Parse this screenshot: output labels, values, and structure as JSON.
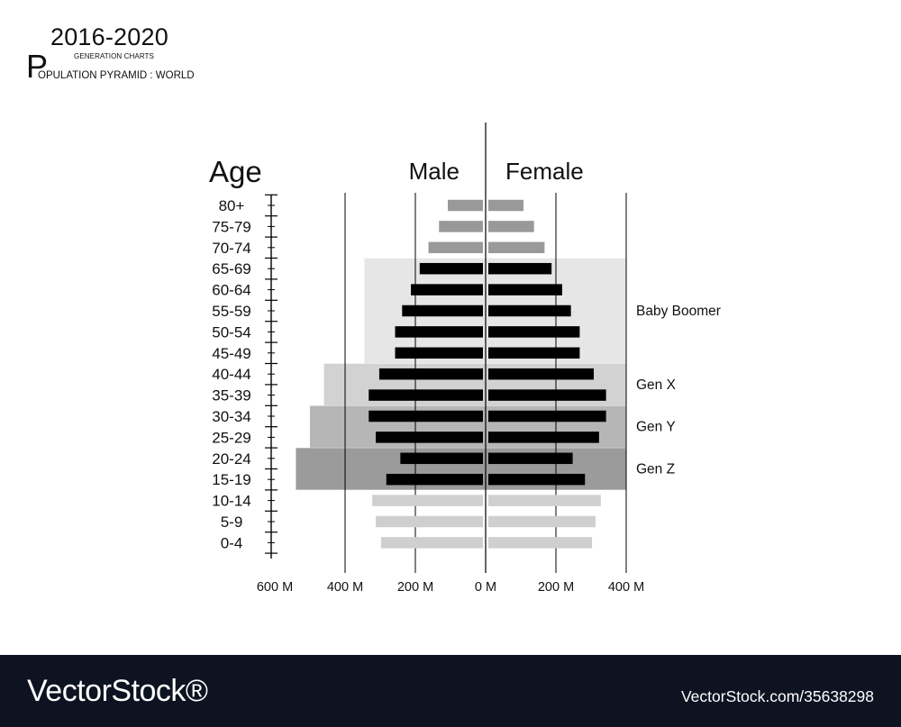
{
  "header": {
    "years": "2016-2020",
    "subtitle": "GENERATION CHARTS",
    "title_initial": "P",
    "title_rest": "OPULATION PYRAMID : WORLD"
  },
  "footer": {
    "logo": "VectorStock®",
    "url": "VectorStock.com/35638298"
  },
  "chart_data": {
    "type": "bar",
    "orientation": "horizontal",
    "ylabel": "Age",
    "categories": [
      "80+",
      "75-79",
      "70-74",
      "65-69",
      "60-64",
      "55-59",
      "50-54",
      "45-49",
      "40-44",
      "35-39",
      "30-34",
      "25-29",
      "20-24",
      "15-19",
      "10-14",
      "5-9",
      "0-4"
    ],
    "series": [
      {
        "name": "Male",
        "values": [
          100,
          125,
          155,
          180,
          205,
          230,
          250,
          250,
          295,
          325,
          325,
          305,
          235,
          275,
          315,
          305,
          290
        ]
      },
      {
        "name": "Female",
        "values": [
          100,
          130,
          160,
          180,
          210,
          235,
          260,
          260,
          300,
          335,
          335,
          315,
          240,
          275,
          320,
          305,
          295
        ]
      }
    ],
    "series_colors": {
      "older": "#999999",
      "generation": "#000000",
      "younger": "#cfcfcf"
    },
    "x_ticks_left": [
      "600 M",
      "400 M",
      "200 M",
      "0 M"
    ],
    "x_ticks_right": [
      "200 M",
      "400 M"
    ],
    "x_tick_values_left": [
      600,
      400,
      200,
      0
    ],
    "x_tick_values_right": [
      200,
      400
    ],
    "xlim": [
      -600,
      400
    ],
    "generations": [
      {
        "name": "Baby Boomer",
        "from": "65-69",
        "to": "45-49",
        "left_extent": 345,
        "color": "#e6e6e6"
      },
      {
        "name": "Gen X",
        "from": "40-44",
        "to": "35-39",
        "left_extent": 460,
        "color": "#d2d2d2"
      },
      {
        "name": "Gen Y",
        "from": "30-34",
        "to": "25-29",
        "left_extent": 500,
        "color": "#b6b6b6"
      },
      {
        "name": "Gen Z",
        "from": "20-24",
        "to": "15-19",
        "left_extent": 540,
        "color": "#9b9b9b"
      }
    ],
    "generation_right_extent": 400,
    "grid": true
  }
}
